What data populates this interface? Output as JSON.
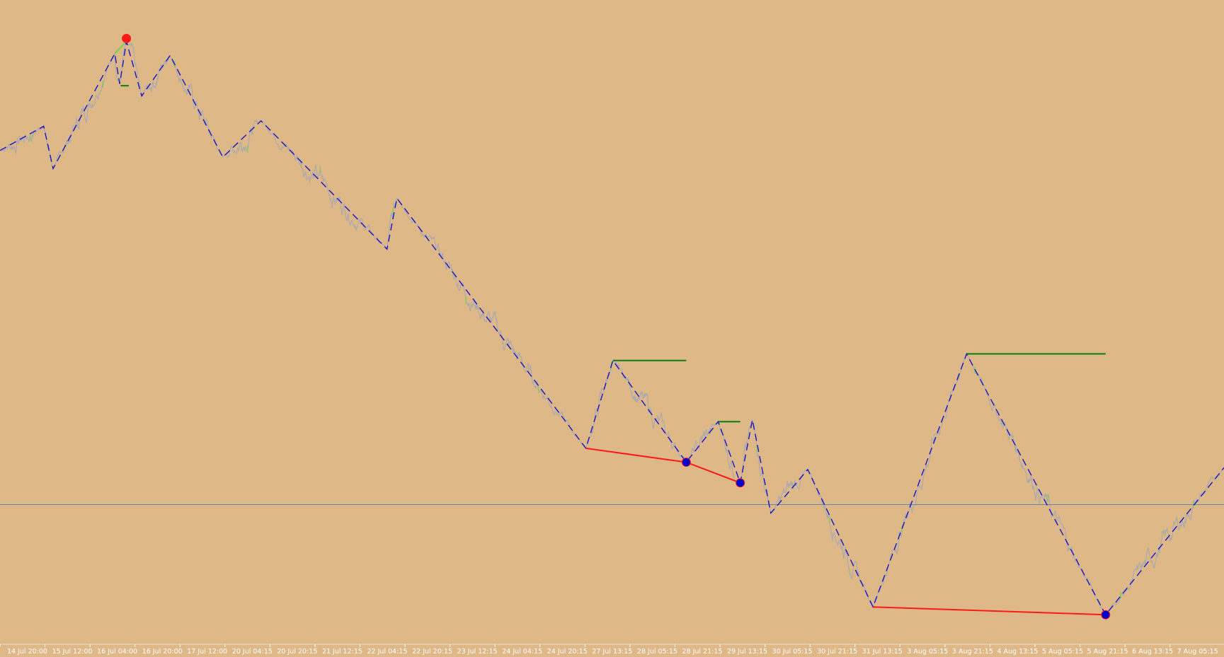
{
  "colors": {
    "background": "#deb887",
    "price_line": "#a9a9b0",
    "price_accent": "#7ccf4e",
    "zigzag": "#1515c8",
    "divergence_line": "#ff1a1a",
    "level_line": "#0a7d0a",
    "bull_marker": "#0000cc",
    "bear_marker": "#ff1a1a",
    "reference_line": "#5c8aa8",
    "axis_text": "#ffffff"
  },
  "chart_data": {
    "type": "line",
    "title": "",
    "xlabel": "",
    "ylabel": "",
    "x_ticks": [
      "14 Jul 20:00",
      "15 Jul 12:00",
      "16 Jul 04:00",
      "16 Jul 20:00",
      "17 Jul 12:00",
      "20 Jul 04:15",
      "20 Jul 20:15",
      "21 Jul 12:15",
      "22 Jul 04:15",
      "22 Jul 20:15",
      "23 Jul 12:15",
      "24 Jul 04:15",
      "24 Jul 20:15",
      "27 Jul 13:15",
      "28 Jul 05:15",
      "28 Jul 21:15",
      "29 Jul 13:15",
      "30 Jul 05:15",
      "30 Jul 21:15",
      "31 Jul 13:15",
      "3 Aug 05:15",
      "3 Aug 21:15",
      "4 Aug 13:15",
      "5 Aug 05:15",
      "5 Aug 21:15",
      "6 Aug 13:15",
      "7 Aug 05:15"
    ],
    "x_range": [
      0,
      27.2
    ],
    "y_range": [
      0,
      100
    ],
    "grid": false,
    "legend": "none",
    "series": [
      {
        "type": "zigzag",
        "style": "dashed",
        "points": [
          [
            0,
            79
          ],
          [
            0.97,
            83
          ],
          [
            1.18,
            76
          ],
          [
            2.55,
            95
          ],
          [
            2.66,
            90
          ],
          [
            2.81,
            97
          ],
          [
            3.15,
            88
          ],
          [
            3.78,
            94.7
          ],
          [
            4.95,
            77.9
          ],
          [
            5.8,
            83.9
          ],
          [
            8.6,
            62.7
          ],
          [
            8.82,
            71.1
          ],
          [
            13.02,
            29.8
          ],
          [
            13.62,
            44.3
          ],
          [
            15.25,
            27.5
          ],
          [
            15.96,
            34.2
          ],
          [
            16.45,
            24.1
          ],
          [
            16.72,
            34.5
          ],
          [
            17.13,
            19.1
          ],
          [
            17.95,
            26.3
          ],
          [
            19.4,
            3.6
          ],
          [
            21.48,
            45.4
          ],
          [
            24.57,
            2.3
          ],
          [
            27.2,
            26.6
          ]
        ]
      },
      {
        "type": "divergence",
        "points": [
          [
            13.02,
            29.8
          ],
          [
            15.25,
            27.5
          ],
          [
            16.45,
            24.1
          ]
        ]
      },
      {
        "type": "divergence",
        "points": [
          [
            19.4,
            3.6
          ],
          [
            24.57,
            2.3
          ]
        ]
      },
      {
        "type": "level",
        "points": [
          [
            13.62,
            44.3
          ],
          [
            15.25,
            44.3
          ]
        ]
      },
      {
        "type": "level",
        "points": [
          [
            15.96,
            34.2
          ],
          [
            16.45,
            34.2
          ]
        ]
      },
      {
        "type": "level",
        "points": [
          [
            21.48,
            45.4
          ],
          [
            24.57,
            45.4
          ]
        ]
      },
      {
        "type": "level",
        "points": [
          [
            2.68,
            89.7
          ],
          [
            2.86,
            89.7
          ]
        ]
      }
    ],
    "markers": [
      {
        "kind": "bear",
        "x": 2.81,
        "y": 97.5
      },
      {
        "kind": "bull",
        "x": 15.25,
        "y": 27.5
      },
      {
        "kind": "bull",
        "x": 16.45,
        "y": 24.1
      },
      {
        "kind": "bull",
        "x": 24.57,
        "y": 2.3
      }
    ],
    "reference_line_y": 20.5
  }
}
